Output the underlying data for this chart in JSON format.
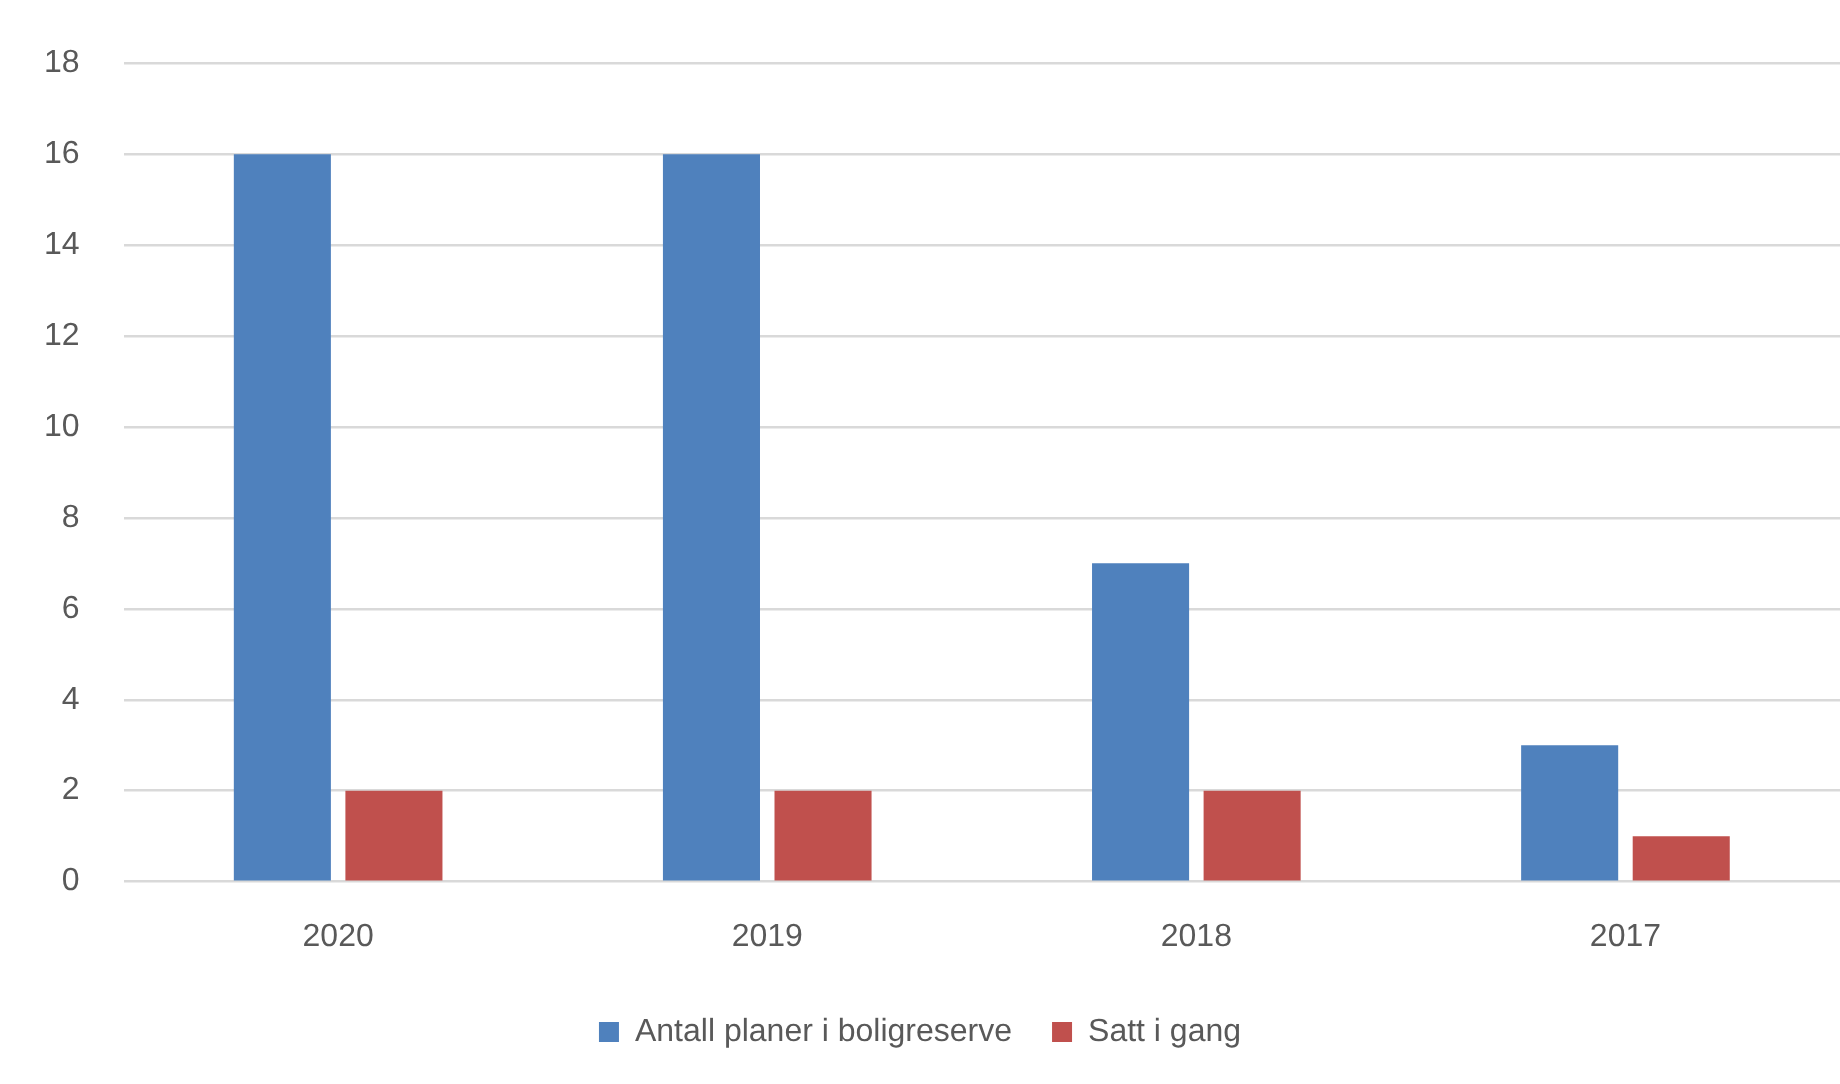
{
  "chart_data": {
    "type": "bar",
    "categories": [
      "2020",
      "2019",
      "2018",
      "2017"
    ],
    "series": [
      {
        "name": "Antall planer i boligreserve",
        "color": "#4f81bd",
        "values": [
          16,
          16,
          7,
          3
        ]
      },
      {
        "name": "Satt i gang",
        "color": "#c0504d",
        "values": [
          2,
          2,
          2,
          1
        ]
      }
    ],
    "ylim": [
      0,
      18
    ],
    "yticks": [
      0,
      2,
      4,
      6,
      8,
      10,
      12,
      14,
      16,
      18
    ],
    "grid": "y",
    "legend": "bottom"
  }
}
